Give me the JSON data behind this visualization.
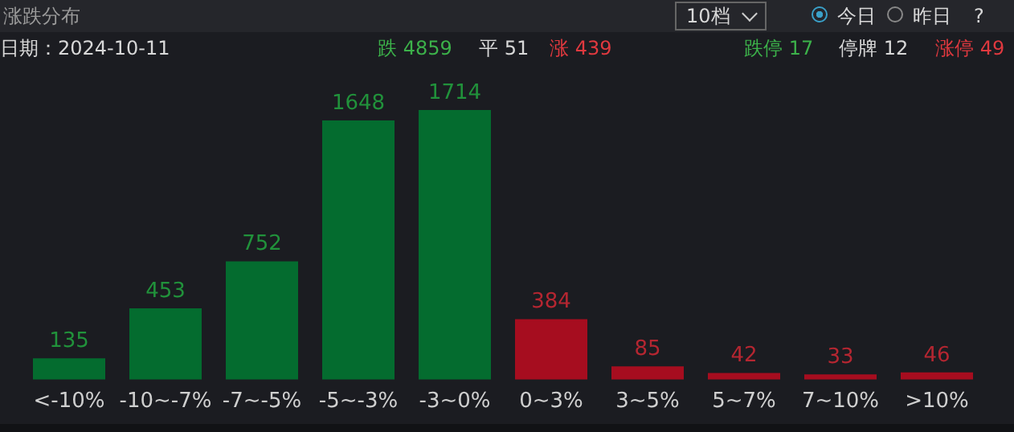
{
  "chart_data": {
    "type": "bar",
    "title": "涨跌分布",
    "categories": [
      "<-10%",
      "-10~-7%",
      "-7~-5%",
      "-5~-3%",
      "-3~0%",
      "0~3%",
      "3~5%",
      "5~7%",
      "7~10%",
      ">10%"
    ],
    "values": [
      135,
      453,
      752,
      1648,
      1714,
      384,
      85,
      42,
      33,
      46
    ],
    "colors": [
      "#046c2f",
      "#046c2f",
      "#046c2f",
      "#046c2f",
      "#046c2f",
      "#a60d1f",
      "#a60d1f",
      "#a60d1f",
      "#a60d1f",
      "#a60d1f"
    ],
    "data_labels": true,
    "legend": false,
    "annotations": [
      "10档",
      "今日",
      "昨日",
      "?",
      "日期：2024-10-11",
      "跌 4859",
      "平 51",
      "涨 439",
      "跌停 17",
      "停牌 12",
      "涨停 49"
    ]
  }
}
